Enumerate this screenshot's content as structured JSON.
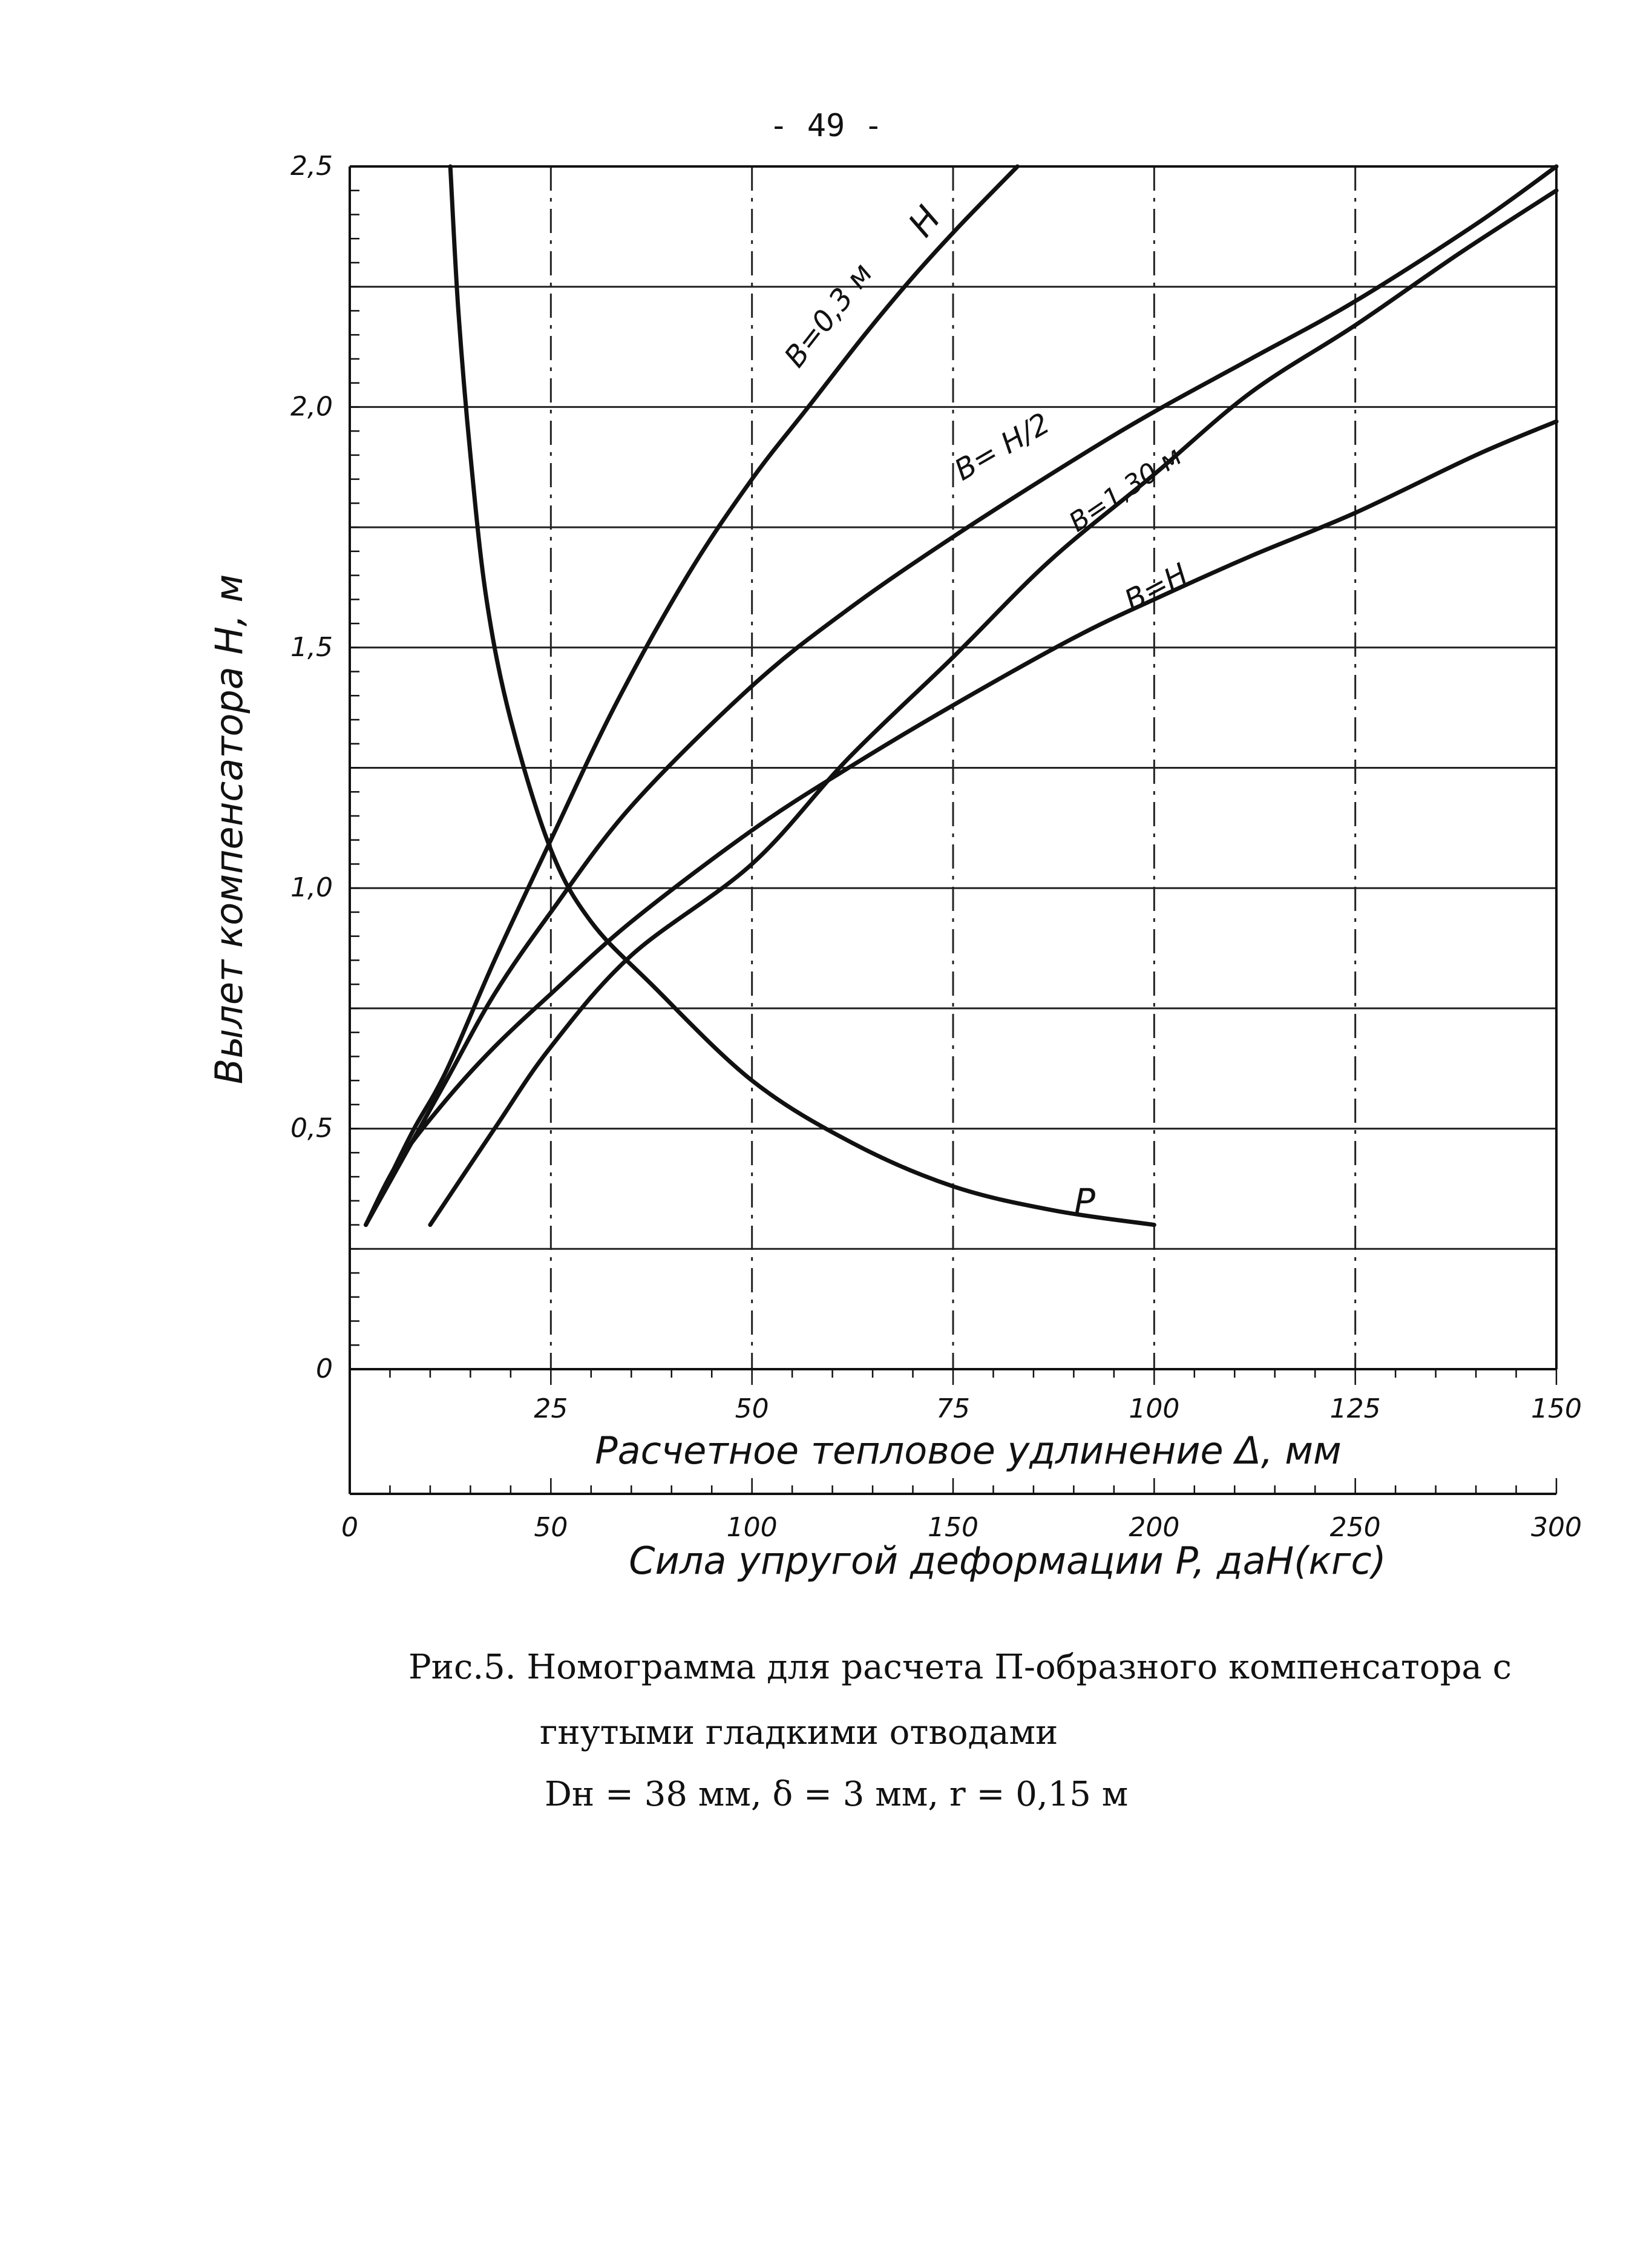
{
  "page_number": "- 49 -",
  "caption": {
    "line1": "Рис.5. Номограмма для расчета П-образного компенсатора с",
    "line2": "гнутыми гладкими отводами",
    "line3": "Dн = 38 мм, δ = 3 мм, r = 0,15 м"
  },
  "chart_data": {
    "type": "line",
    "ylabel": "Вылет компенсатора H, м",
    "xlabel": "Расчетное тепловое удлинение Δ, мм",
    "x2label": "Сила упругой деформации P, даН(кгс)",
    "xlim": [
      0,
      150
    ],
    "ylim": [
      0,
      2.5
    ],
    "x2lim": [
      0,
      300
    ],
    "x_ticks": [
      "25",
      "50",
      "75",
      "100",
      "125",
      "150"
    ],
    "x_tick_values": [
      25,
      50,
      75,
      100,
      125,
      150
    ],
    "x2_ticks": [
      "0",
      "50",
      "100",
      "150",
      "200",
      "250",
      "300"
    ],
    "x2_tick_values": [
      0,
      50,
      100,
      150,
      200,
      250,
      300
    ],
    "y_ticks": [
      "0",
      "0,5",
      "1,0",
      "1,5",
      "2,0",
      "2,5"
    ],
    "y_tick_values": [
      0,
      0.5,
      1.0,
      1.5,
      2.0,
      2.5
    ],
    "grid": true,
    "series": [
      {
        "name": "B=0,3 м",
        "label": "H",
        "x": [
          2,
          5,
          8,
          12,
          18,
          25,
          33,
          42,
          50,
          57,
          64,
          70,
          76,
          83
        ],
        "y": [
          0.3,
          0.4,
          0.5,
          0.62,
          0.85,
          1.1,
          1.38,
          1.65,
          1.85,
          2.0,
          2.15,
          2.27,
          2.38,
          2.5
        ]
      },
      {
        "name": "B=H/2",
        "x": [
          2,
          6,
          12,
          18,
          25,
          35,
          50,
          62,
          75,
          90,
          100,
          112,
          125,
          140,
          150
        ],
        "y": [
          0.3,
          0.42,
          0.6,
          0.78,
          0.95,
          1.17,
          1.42,
          1.58,
          1.73,
          1.89,
          1.99,
          2.1,
          2.22,
          2.38,
          2.5
        ]
      },
      {
        "name": "B=1,30 м",
        "x": [
          10,
          18,
          25,
          35,
          50,
          62,
          75,
          87,
          100,
          112,
          125,
          138,
          150
        ],
        "y": [
          0.3,
          0.5,
          0.67,
          0.86,
          1.05,
          1.27,
          1.48,
          1.68,
          1.86,
          2.03,
          2.17,
          2.32,
          2.45
        ]
      },
      {
        "name": "B=H",
        "x": [
          2,
          6,
          12,
          18,
          25,
          35,
          50,
          62,
          75,
          90,
          100,
          112,
          125,
          140,
          150
        ],
        "y": [
          0.3,
          0.43,
          0.56,
          0.67,
          0.78,
          0.93,
          1.12,
          1.25,
          1.38,
          1.52,
          1.6,
          1.69,
          1.78,
          1.9,
          1.97
        ]
      },
      {
        "name": "P",
        "label": "P",
        "x": [
          12.5,
          13.5,
          15,
          17,
          20,
          25,
          30,
          37.5,
          50,
          62.5,
          75,
          87.5,
          100
        ],
        "y": [
          2.5,
          2.2,
          1.9,
          1.6,
          1.35,
          1.08,
          0.93,
          0.8,
          0.6,
          0.47,
          0.38,
          0.33,
          0.3
        ]
      }
    ],
    "curve_labels": [
      "B=0,3 м",
      "H",
      "B= H/2",
      "B=1,30 м",
      "B=H",
      "P"
    ]
  }
}
